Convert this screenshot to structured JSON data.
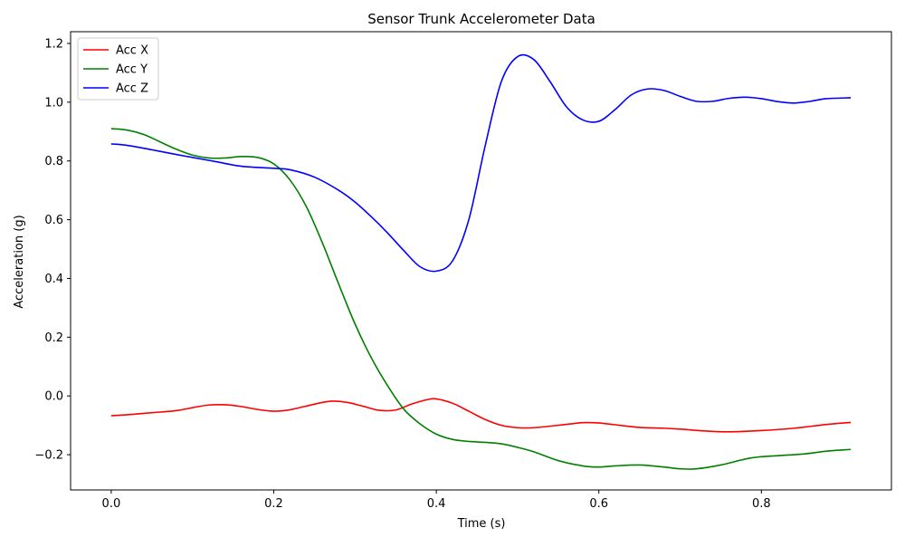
{
  "chart_data": {
    "type": "line",
    "title": "Sensor Trunk Accelerometer Data",
    "xlabel": "Time (s)",
    "ylabel": "Acceleration (g)",
    "xlim": [
      -0.05,
      0.96
    ],
    "ylim": [
      -0.32,
      1.24
    ],
    "xticks": [
      0.0,
      0.2,
      0.4,
      0.6,
      0.8
    ],
    "xtick_labels": [
      "0.0",
      "0.2",
      "0.4",
      "0.6",
      "0.8"
    ],
    "yticks": [
      -0.2,
      0.0,
      0.2,
      0.4,
      0.6,
      0.8,
      1.0,
      1.2
    ],
    "ytick_labels": [
      "−0.2",
      "0.0",
      "0.2",
      "0.4",
      "0.6",
      "0.8",
      "1.0",
      "1.2"
    ],
    "grid": false,
    "legend": "top-left",
    "series": [
      {
        "name": "Acc X",
        "color": "#ff0000",
        "x": [
          0.0,
          0.02,
          0.05,
          0.08,
          0.1,
          0.12,
          0.14,
          0.16,
          0.18,
          0.2,
          0.22,
          0.25,
          0.27,
          0.29,
          0.31,
          0.33,
          0.35,
          0.37,
          0.39,
          0.4,
          0.42,
          0.44,
          0.46,
          0.48,
          0.5,
          0.52,
          0.55,
          0.58,
          0.6,
          0.62,
          0.65,
          0.68,
          0.7,
          0.73,
          0.76,
          0.8,
          0.84,
          0.88,
          0.91
        ],
        "y": [
          -0.067,
          -0.064,
          -0.057,
          -0.05,
          -0.04,
          -0.031,
          -0.03,
          -0.036,
          -0.046,
          -0.052,
          -0.047,
          -0.028,
          -0.018,
          -0.022,
          -0.035,
          -0.049,
          -0.048,
          -0.027,
          -0.012,
          -0.01,
          -0.025,
          -0.052,
          -0.08,
          -0.1,
          -0.108,
          -0.108,
          -0.1,
          -0.091,
          -0.092,
          -0.098,
          -0.107,
          -0.11,
          -0.113,
          -0.119,
          -0.122,
          -0.118,
          -0.11,
          -0.097,
          -0.09
        ]
      },
      {
        "name": "Acc Y",
        "color": "#008000",
        "x": [
          0.0,
          0.02,
          0.04,
          0.06,
          0.08,
          0.1,
          0.12,
          0.14,
          0.16,
          0.18,
          0.2,
          0.22,
          0.24,
          0.26,
          0.28,
          0.3,
          0.32,
          0.34,
          0.36,
          0.38,
          0.4,
          0.42,
          0.44,
          0.46,
          0.48,
          0.5,
          0.52,
          0.55,
          0.58,
          0.6,
          0.62,
          0.65,
          0.68,
          0.7,
          0.72,
          0.75,
          0.78,
          0.8,
          0.85,
          0.88,
          0.91
        ],
        "y": [
          0.91,
          0.905,
          0.89,
          0.865,
          0.84,
          0.82,
          0.81,
          0.81,
          0.815,
          0.812,
          0.79,
          0.735,
          0.645,
          0.52,
          0.38,
          0.245,
          0.13,
          0.035,
          -0.045,
          -0.095,
          -0.13,
          -0.148,
          -0.155,
          -0.158,
          -0.163,
          -0.175,
          -0.19,
          -0.22,
          -0.238,
          -0.242,
          -0.238,
          -0.235,
          -0.242,
          -0.248,
          -0.248,
          -0.235,
          -0.215,
          -0.207,
          -0.198,
          -0.188,
          -0.182
        ]
      },
      {
        "name": "Acc Z",
        "color": "#0000ff",
        "x": [
          0.0,
          0.02,
          0.05,
          0.08,
          0.1,
          0.13,
          0.16,
          0.2,
          0.22,
          0.25,
          0.28,
          0.3,
          0.32,
          0.34,
          0.36,
          0.38,
          0.4,
          0.42,
          0.44,
          0.46,
          0.48,
          0.5,
          0.52,
          0.54,
          0.56,
          0.58,
          0.6,
          0.62,
          0.64,
          0.66,
          0.68,
          0.7,
          0.72,
          0.74,
          0.76,
          0.78,
          0.8,
          0.82,
          0.84,
          0.86,
          0.88,
          0.91
        ],
        "y": [
          0.858,
          0.853,
          0.838,
          0.822,
          0.812,
          0.797,
          0.782,
          0.775,
          0.77,
          0.745,
          0.7,
          0.66,
          0.61,
          0.555,
          0.495,
          0.44,
          0.425,
          0.46,
          0.6,
          0.85,
          1.07,
          1.155,
          1.145,
          1.07,
          0.985,
          0.94,
          0.935,
          0.975,
          1.025,
          1.045,
          1.04,
          1.02,
          1.003,
          1.003,
          1.013,
          1.017,
          1.012,
          1.002,
          0.997,
          1.003,
          1.012,
          1.015
        ]
      }
    ]
  }
}
